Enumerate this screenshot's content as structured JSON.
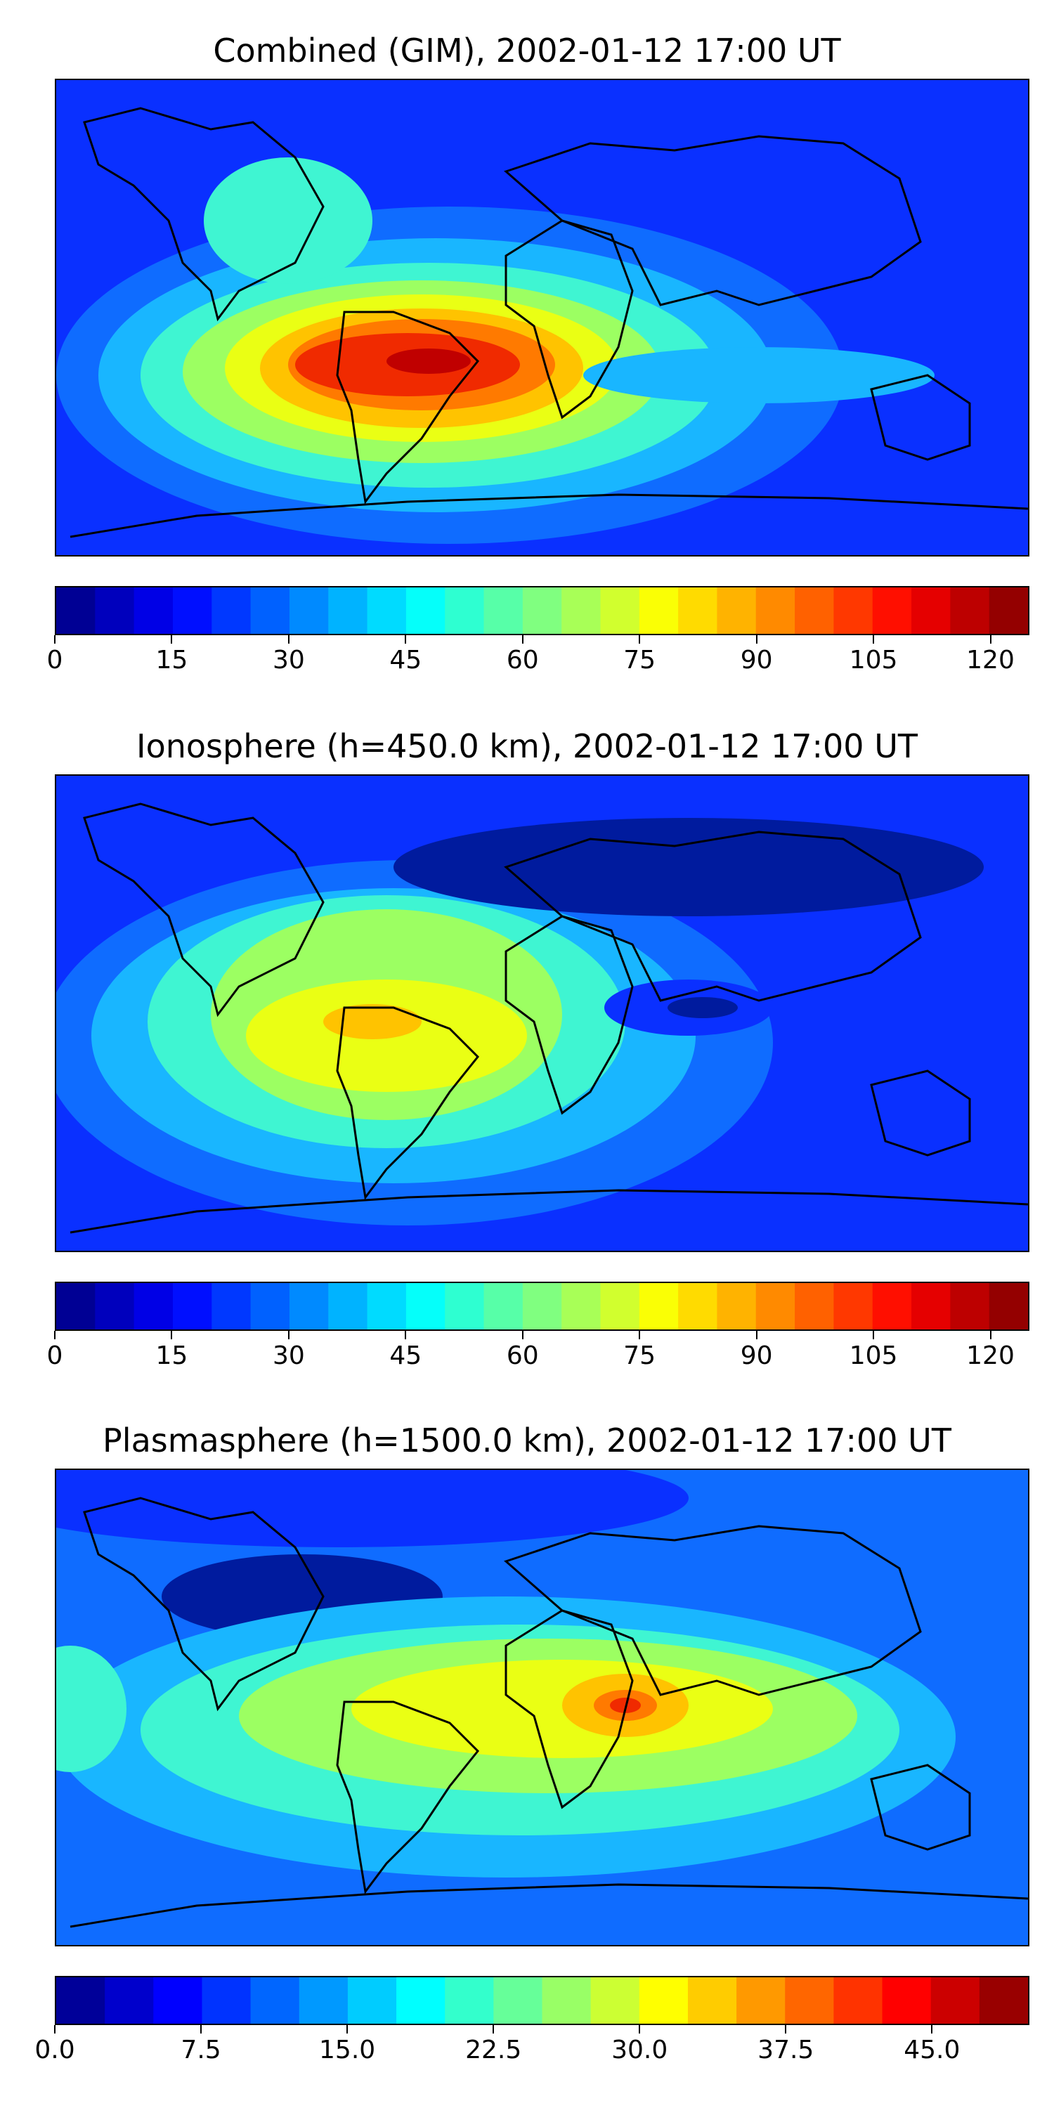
{
  "panels": [
    {
      "title": "Combined (GIM), 2002-01-12 17:00 UT",
      "colorbar": {
        "vmin": 0,
        "vmax": 125,
        "levels": 25,
        "ticks": [
          "0",
          "15",
          "30",
          "45",
          "60",
          "75",
          "90",
          "105",
          "120"
        ],
        "tick_values": [
          0,
          15,
          30,
          45,
          60,
          75,
          90,
          105,
          120
        ]
      }
    },
    {
      "title": "Ionosphere  (h=450.0 km), 2002-01-12 17:00 UT",
      "colorbar": {
        "vmin": 0,
        "vmax": 125,
        "levels": 25,
        "ticks": [
          "0",
          "15",
          "30",
          "45",
          "60",
          "75",
          "90",
          "105",
          "120"
        ],
        "tick_values": [
          0,
          15,
          30,
          45,
          60,
          75,
          90,
          105,
          120
        ]
      }
    },
    {
      "title": "Plasmasphere (h=1500.0 km), 2002-01-12 17:00 UT",
      "colorbar": {
        "vmin": 0,
        "vmax": 50,
        "levels": 20,
        "ticks": [
          "0.0",
          "7.5",
          "15.0",
          "22.5",
          "30.0",
          "37.5",
          "45.0"
        ],
        "tick_values": [
          0,
          7.5,
          15,
          22.5,
          30,
          37.5,
          45
        ]
      }
    }
  ],
  "colormap": "jet"
}
